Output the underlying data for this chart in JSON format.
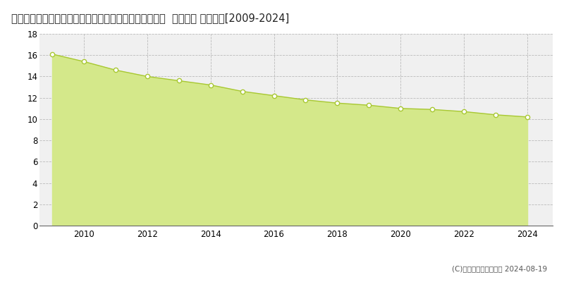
{
  "title": "和歌山県伊都郡かつらぎ町大字笠田東字男子１０５番３  地価公示 地価推移[2009-2024]",
  "years": [
    2009,
    2010,
    2011,
    2012,
    2013,
    2014,
    2015,
    2016,
    2017,
    2018,
    2019,
    2020,
    2021,
    2022,
    2023,
    2024
  ],
  "values": [
    16.1,
    15.4,
    14.6,
    14.0,
    13.6,
    13.2,
    12.6,
    12.2,
    11.8,
    11.5,
    11.3,
    11.0,
    10.9,
    10.7,
    10.4,
    10.2
  ],
  "line_color": "#a8c832",
  "fill_color": "#d4e88a",
  "fill_alpha": 1.0,
  "marker_color": "white",
  "marker_edge_color": "#a8c832",
  "background_color": "#f0f0f0",
  "grid_color": "#bbbbbb",
  "ylim": [
    0,
    18
  ],
  "yticks": [
    0,
    2,
    4,
    6,
    8,
    10,
    12,
    14,
    16,
    18
  ],
  "xticks": [
    2010,
    2012,
    2014,
    2016,
    2018,
    2020,
    2022,
    2024
  ],
  "title_fontsize": 10.5,
  "copyright_text": "(C)土地価格ドットコム 2024-08-19"
}
